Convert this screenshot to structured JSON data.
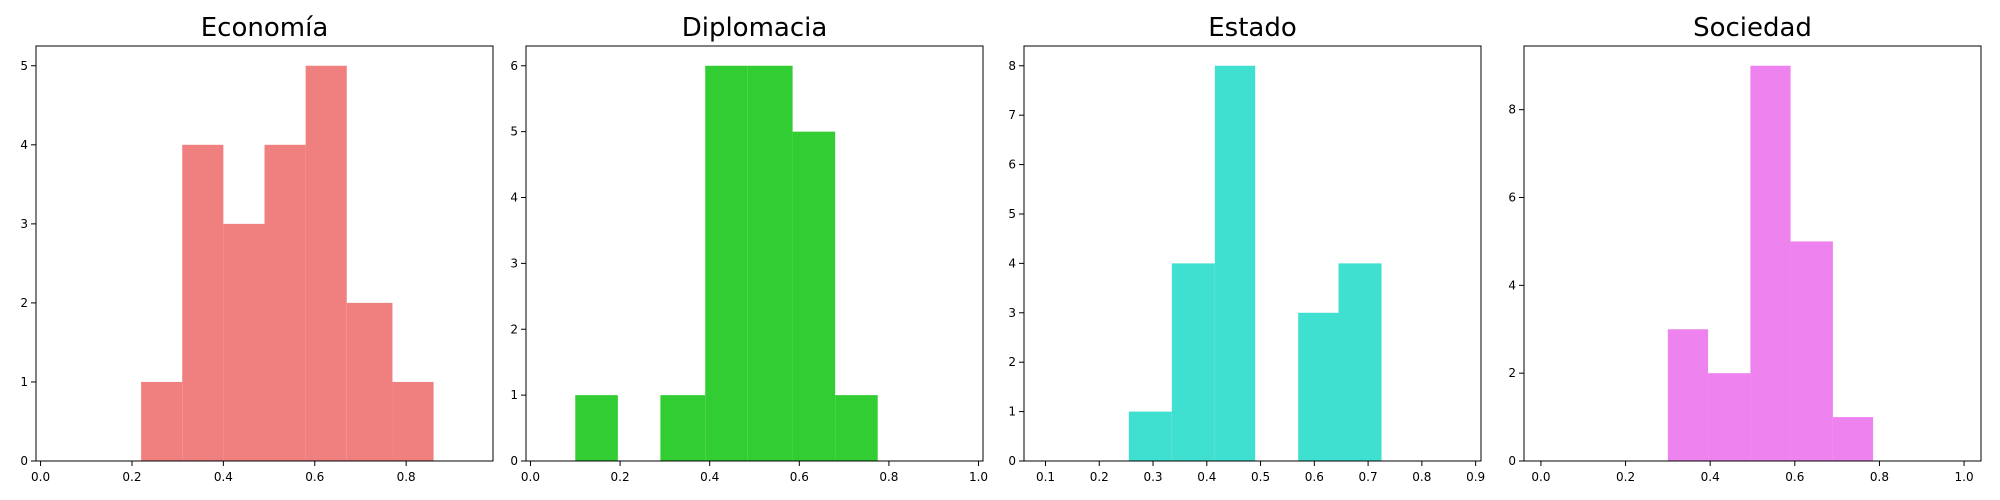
{
  "chart_data": [
    {
      "type": "bar",
      "title": "Economía",
      "color": "#f08080",
      "xlim": [
        -0.01,
        0.99
      ],
      "ylim": [
        0,
        5.25
      ],
      "xticks": [
        "0.0",
        "0.2",
        "0.4",
        "0.6",
        "0.8"
      ],
      "xtick_values": [
        0.0,
        0.2,
        0.4,
        0.6,
        0.8
      ],
      "yticks": [
        "0",
        "1",
        "2",
        "3",
        "4",
        "5"
      ],
      "ytick_values": [
        0,
        1,
        2,
        3,
        4,
        5
      ],
      "bins": [
        {
          "x0": 0.22,
          "x1": 0.31,
          "value": 1
        },
        {
          "x0": 0.31,
          "x1": 0.4,
          "value": 4
        },
        {
          "x0": 0.4,
          "x1": 0.49,
          "value": 3
        },
        {
          "x0": 0.49,
          "x1": 0.58,
          "value": 4
        },
        {
          "x0": 0.58,
          "x1": 0.67,
          "value": 5
        },
        {
          "x0": 0.67,
          "x1": 0.77,
          "value": 2
        },
        {
          "x0": 0.77,
          "x1": 0.86,
          "value": 1
        }
      ]
    },
    {
      "type": "bar",
      "title": "Diplomacia",
      "color": "#32cd32",
      "xlim": [
        -0.01,
        1.01
      ],
      "ylim": [
        0,
        6.3
      ],
      "xticks": [
        "0.0",
        "0.2",
        "0.4",
        "0.6",
        "0.8",
        "1.0"
      ],
      "xtick_values": [
        0.0,
        0.2,
        0.4,
        0.6,
        0.8,
        1.0
      ],
      "yticks": [
        "0",
        "1",
        "2",
        "3",
        "4",
        "5",
        "6"
      ],
      "ytick_values": [
        0,
        1,
        2,
        3,
        4,
        5,
        6
      ],
      "bins": [
        {
          "x0": 0.1,
          "x1": 0.195,
          "value": 1
        },
        {
          "x0": 0.195,
          "x1": 0.29,
          "value": 0
        },
        {
          "x0": 0.29,
          "x1": 0.39,
          "value": 1
        },
        {
          "x0": 0.39,
          "x1": 0.485,
          "value": 6
        },
        {
          "x0": 0.485,
          "x1": 0.585,
          "value": 6
        },
        {
          "x0": 0.585,
          "x1": 0.68,
          "value": 5
        },
        {
          "x0": 0.68,
          "x1": 0.775,
          "value": 1
        }
      ]
    },
    {
      "type": "bar",
      "title": "Estado",
      "color": "#40e0d0",
      "xlim": [
        0.06,
        0.91
      ],
      "ylim": [
        0,
        8.4
      ],
      "xticks": [
        "0.1",
        "0.2",
        "0.3",
        "0.4",
        "0.5",
        "0.6",
        "0.7",
        "0.8",
        "0.9"
      ],
      "xtick_values": [
        0.1,
        0.2,
        0.3,
        0.4,
        0.5,
        0.6,
        0.7,
        0.8,
        0.9
      ],
      "yticks": [
        "0",
        "1",
        "2",
        "3",
        "4",
        "5",
        "6",
        "7",
        "8"
      ],
      "ytick_values": [
        0,
        1,
        2,
        3,
        4,
        5,
        6,
        7,
        8
      ],
      "bins": [
        {
          "x0": 0.255,
          "x1": 0.335,
          "value": 1
        },
        {
          "x0": 0.335,
          "x1": 0.415,
          "value": 4
        },
        {
          "x0": 0.415,
          "x1": 0.49,
          "value": 8
        },
        {
          "x0": 0.49,
          "x1": 0.57,
          "value": 0
        },
        {
          "x0": 0.57,
          "x1": 0.645,
          "value": 3
        },
        {
          "x0": 0.645,
          "x1": 0.725,
          "value": 4
        }
      ]
    },
    {
      "type": "bar",
      "title": "Sociedad",
      "color": "#ee82ee",
      "xlim": [
        -0.04,
        1.04
      ],
      "ylim": [
        0,
        9.45
      ],
      "xticks": [
        "0.0",
        "0.2",
        "0.4",
        "0.6",
        "0.8",
        "1.0"
      ],
      "xtick_values": [
        0.0,
        0.2,
        0.4,
        0.6,
        0.8,
        1.0
      ],
      "yticks": [
        "0",
        "2",
        "4",
        "6",
        "8"
      ],
      "ytick_values": [
        0,
        2,
        4,
        6,
        8
      ],
      "bins": [
        {
          "x0": 0.3,
          "x1": 0.395,
          "value": 3
        },
        {
          "x0": 0.395,
          "x1": 0.495,
          "value": 2
        },
        {
          "x0": 0.495,
          "x1": 0.59,
          "value": 9
        },
        {
          "x0": 0.59,
          "x1": 0.69,
          "value": 5
        },
        {
          "x0": 0.69,
          "x1": 0.785,
          "value": 1
        }
      ]
    }
  ]
}
